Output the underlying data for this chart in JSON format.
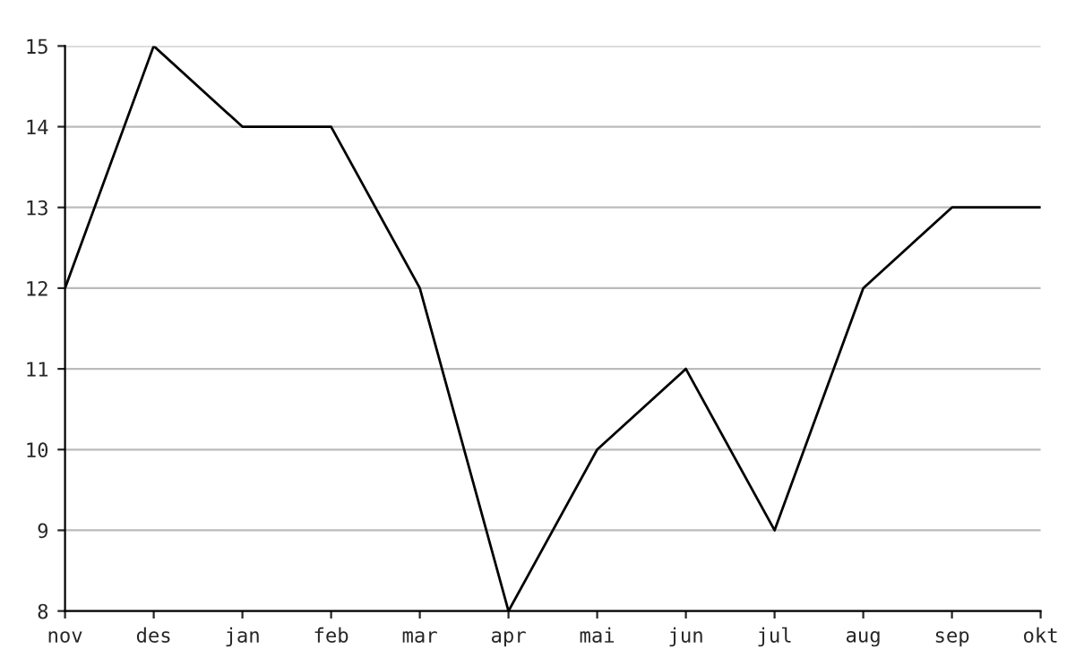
{
  "chart_data": {
    "type": "line",
    "categories": [
      "nov",
      "des",
      "jan",
      "feb",
      "mar",
      "apr",
      "mai",
      "jun",
      "jul",
      "aug",
      "sep",
      "okt"
    ],
    "series": [
      {
        "color": "#000000",
        "values": [
          12,
          15,
          14,
          14,
          12,
          8,
          10,
          11,
          9,
          12,
          13,
          13
        ]
      }
    ],
    "ylim": [
      8,
      15
    ],
    "yticks": [
      8,
      9,
      10,
      11,
      12,
      13,
      14,
      15
    ],
    "grid": "y"
  }
}
